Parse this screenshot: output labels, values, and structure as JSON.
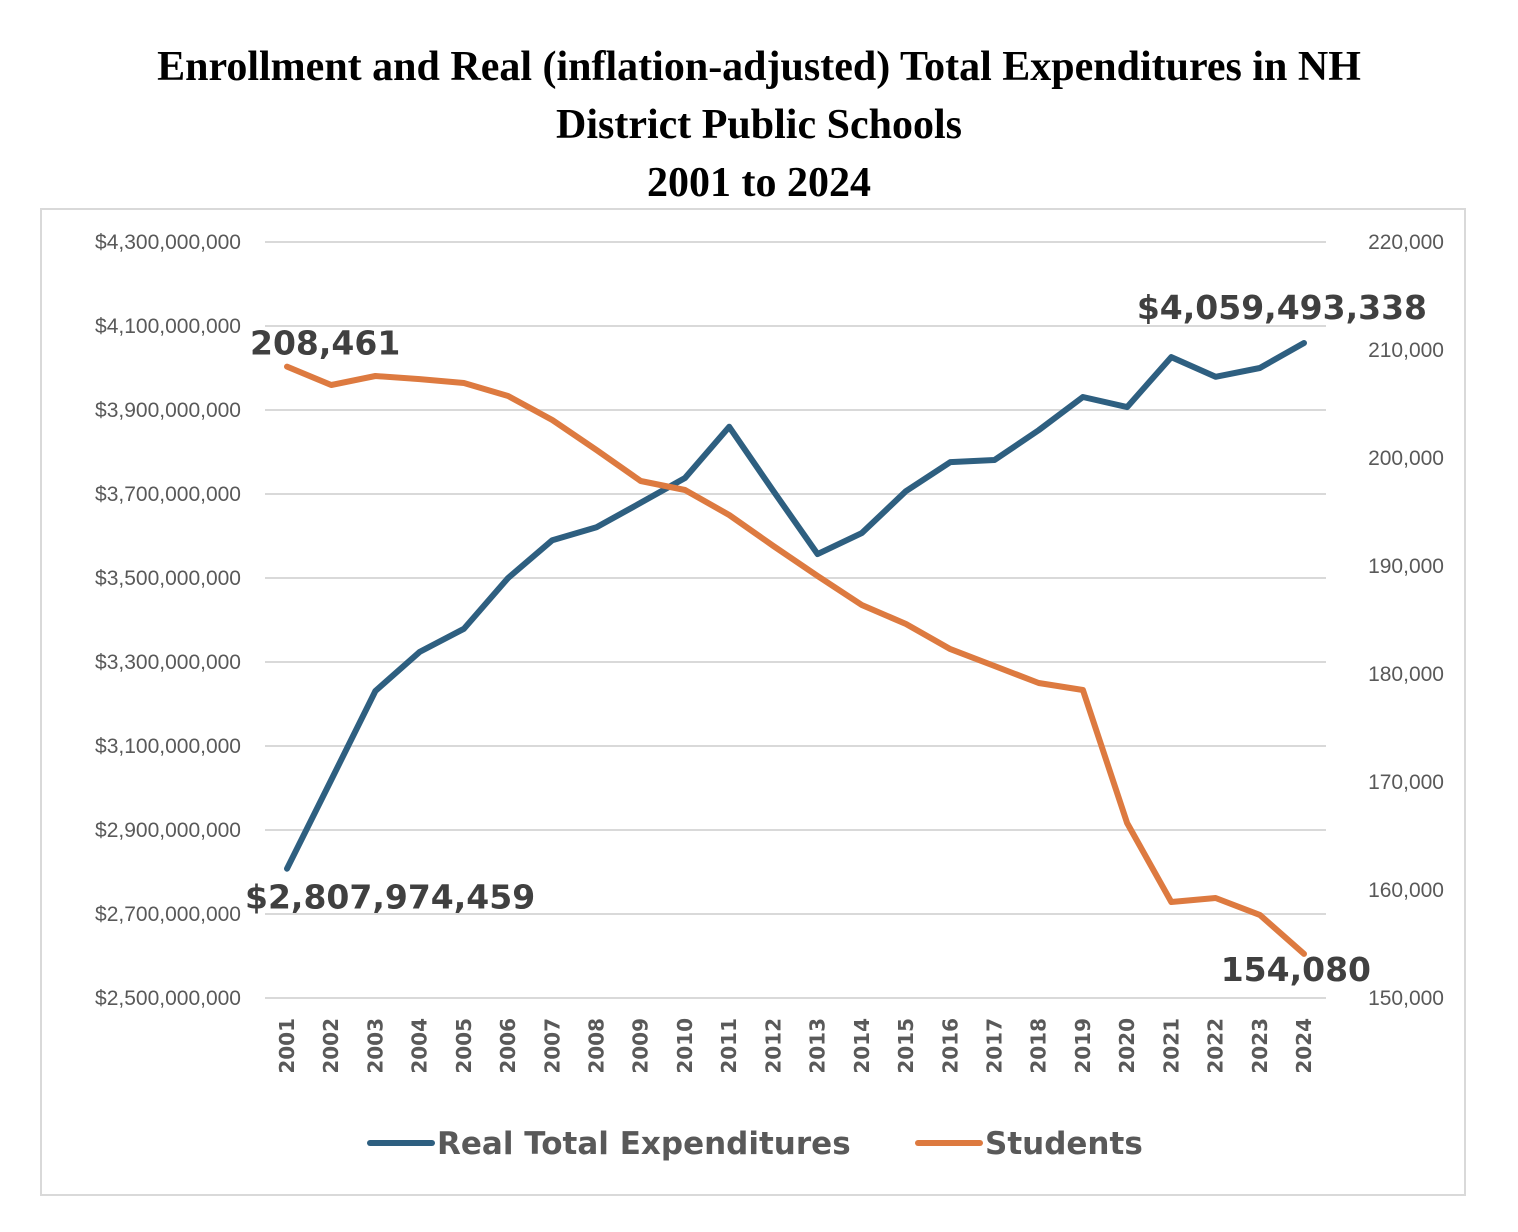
{
  "title_lines": [
    "Enrollment and Real (inflation-adjusted) Total Expenditures in NH",
    "District Public Schools",
    "2001 to 2024"
  ],
  "chart_data": {
    "type": "line",
    "title": "Enrollment and Real (inflation-adjusted) Total Expenditures in NH District Public Schools 2001 to 2024",
    "xlabel": "",
    "ylabel_left": "",
    "ylabel_right": "",
    "categories": [
      "2001",
      "2002",
      "2003",
      "2004",
      "2005",
      "2006",
      "2007",
      "2008",
      "2009",
      "2010",
      "2011",
      "2012",
      "2013",
      "2014",
      "2015",
      "2016",
      "2017",
      "2018",
      "2019",
      "2020",
      "2021",
      "2022",
      "2023",
      "2024"
    ],
    "y_left": {
      "range": [
        2500000000,
        4300000000
      ],
      "ticks": [
        2500000000,
        2700000000,
        2900000000,
        3100000000,
        3300000000,
        3500000000,
        3700000000,
        3900000000,
        4100000000,
        4300000000
      ],
      "tick_labels": [
        "$2,500,000,000",
        "$2,700,000,000",
        "$2,900,000,000",
        "$3,100,000,000",
        "$3,300,000,000",
        "$3,500,000,000",
        "$3,700,000,000",
        "$3,900,000,000",
        "$4,100,000,000",
        "$4,300,000,000"
      ]
    },
    "y_right": {
      "range": [
        150000,
        220000
      ],
      "ticks": [
        150000,
        160000,
        170000,
        180000,
        190000,
        200000,
        210000,
        220000
      ],
      "tick_labels": [
        "150,000",
        "160,000",
        "170,000",
        "180,000",
        "190,000",
        "200,000",
        "210,000",
        "220,000"
      ]
    },
    "grid": true,
    "legend_position": "bottom",
    "series": [
      {
        "name": "Real Total Expenditures",
        "axis": "left",
        "color": "#2e5f80",
        "values": [
          2807974459,
          3019000000,
          3231000000,
          3324000000,
          3379000000,
          3500000000,
          3590000000,
          3621000000,
          3679000000,
          3738000000,
          3860000000,
          3707000000,
          3557000000,
          3607000000,
          3707000000,
          3776000000,
          3781000000,
          3852000000,
          3931000000,
          3907000000,
          4026000000,
          3979000000,
          4000000000,
          4059493338
        ],
        "annotations": [
          {
            "index": 0,
            "text": "$2,807,974,459"
          },
          {
            "index": 23,
            "text": "$4,059,493,338"
          }
        ]
      },
      {
        "name": "Students",
        "axis": "right",
        "color": "#dd7a40",
        "values": [
          208461,
          206760,
          207590,
          207310,
          206940,
          205740,
          203520,
          200740,
          197870,
          197040,
          194720,
          191850,
          189070,
          186390,
          184630,
          182310,
          180740,
          179170,
          178520,
          166200,
          158890,
          159260,
          157690,
          154080
        ],
        "annotations": [
          {
            "index": 0,
            "text": "208,461"
          },
          {
            "index": 23,
            "text": "154,080"
          }
        ]
      }
    ]
  }
}
